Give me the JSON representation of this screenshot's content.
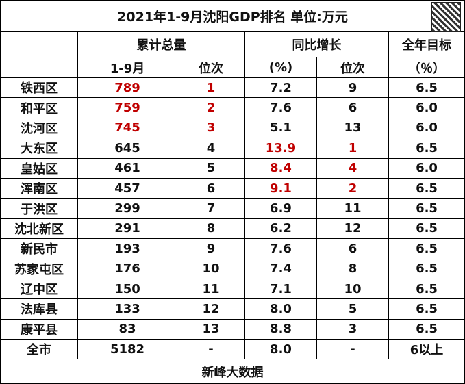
{
  "header": {
    "title": "2021年1-9月沈阳GDP排名 单位:万元",
    "groups": [
      "累计总量",
      "同比增长",
      "全年目标"
    ],
    "sub": [
      "1-9月",
      "位次",
      "(%)",
      "位次",
      "（％）"
    ]
  },
  "table": {
    "rows": [
      [
        "铁西区",
        "789",
        "1",
        "7.2",
        "9",
        "6.5"
      ],
      [
        "和平区",
        "759",
        "2",
        "7.6",
        "6",
        "6.0"
      ],
      [
        "沈河区",
        "745",
        "3",
        "5.1",
        "13",
        "6.0"
      ],
      [
        "大东区",
        "645",
        "4",
        "13.9",
        "1",
        "6.5"
      ],
      [
        "皇姑区",
        "461",
        "5",
        "8.4",
        "4",
        "6.0"
      ],
      [
        "浑南区",
        "457",
        "6",
        "9.1",
        "2",
        "6.5"
      ],
      [
        "于洪区",
        "299",
        "7",
        "6.9",
        "11",
        "6.5"
      ],
      [
        "沈北新区",
        "291",
        "8",
        "6.2",
        "12",
        "6.5"
      ],
      [
        "新民市",
        "193",
        "9",
        "7.6",
        "6",
        "6.5"
      ],
      [
        "苏家屯区",
        "176",
        "10",
        "7.4",
        "8",
        "6.5"
      ],
      [
        "辽中区",
        "150",
        "11",
        "7.1",
        "10",
        "6.5"
      ],
      [
        "法库县",
        "133",
        "12",
        "8.0",
        "5",
        "6.5"
      ],
      [
        "康平县",
        "83",
        "13",
        "8.8",
        "3",
        "6.5"
      ],
      [
        "全市",
        "5182",
        "-",
        "8.0",
        "-",
        "6以上"
      ]
    ]
  },
  "footer": "新峰大数据"
}
